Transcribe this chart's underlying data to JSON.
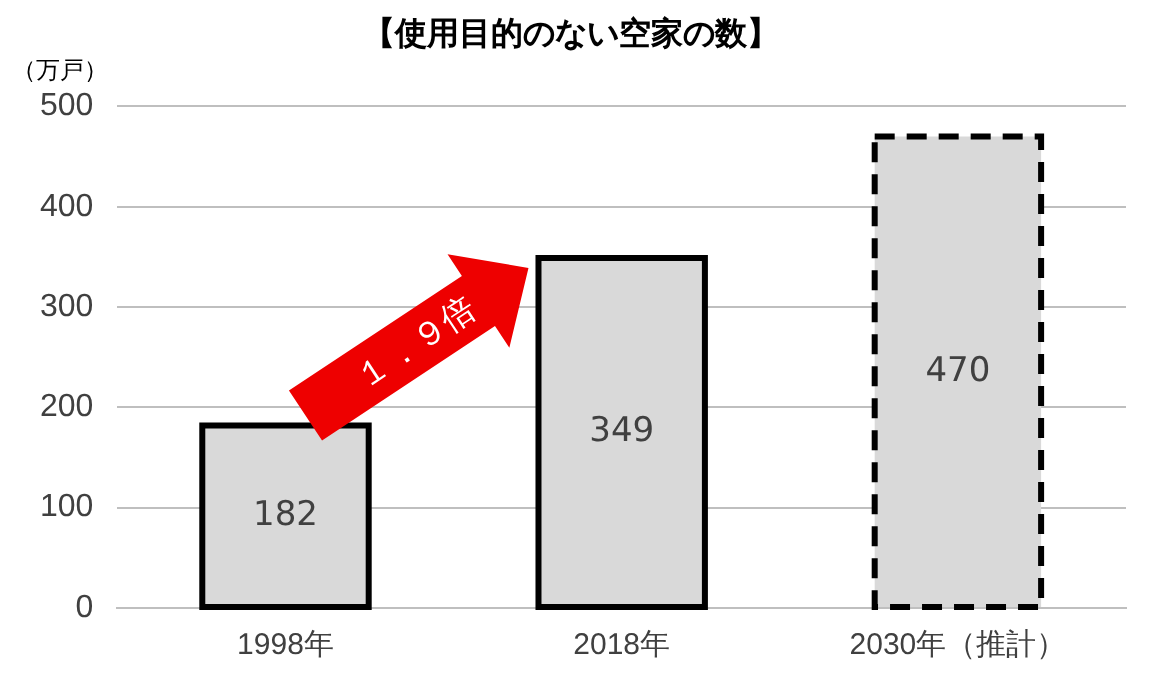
{
  "chart_data": {
    "type": "bar",
    "title": "【使用目的のない空家の数】",
    "ylabel": "（万戸）",
    "categories": [
      "1998年",
      "2018年",
      "2030年（推計）"
    ],
    "series": [
      {
        "color": "#d9d9d9",
        "values": [
          182,
          349,
          null
        ],
        "line_style": "solid"
      },
      {
        "color": "#d9d9d9",
        "values": [
          null,
          null,
          470
        ],
        "line_style": "dashed"
      }
    ],
    "ylim": [
      0,
      500
    ],
    "yticks": [
      0,
      100,
      200,
      300,
      400,
      500
    ],
    "grid": "y",
    "data_labels": true,
    "annotations": [
      "１．９倍"
    ]
  }
}
